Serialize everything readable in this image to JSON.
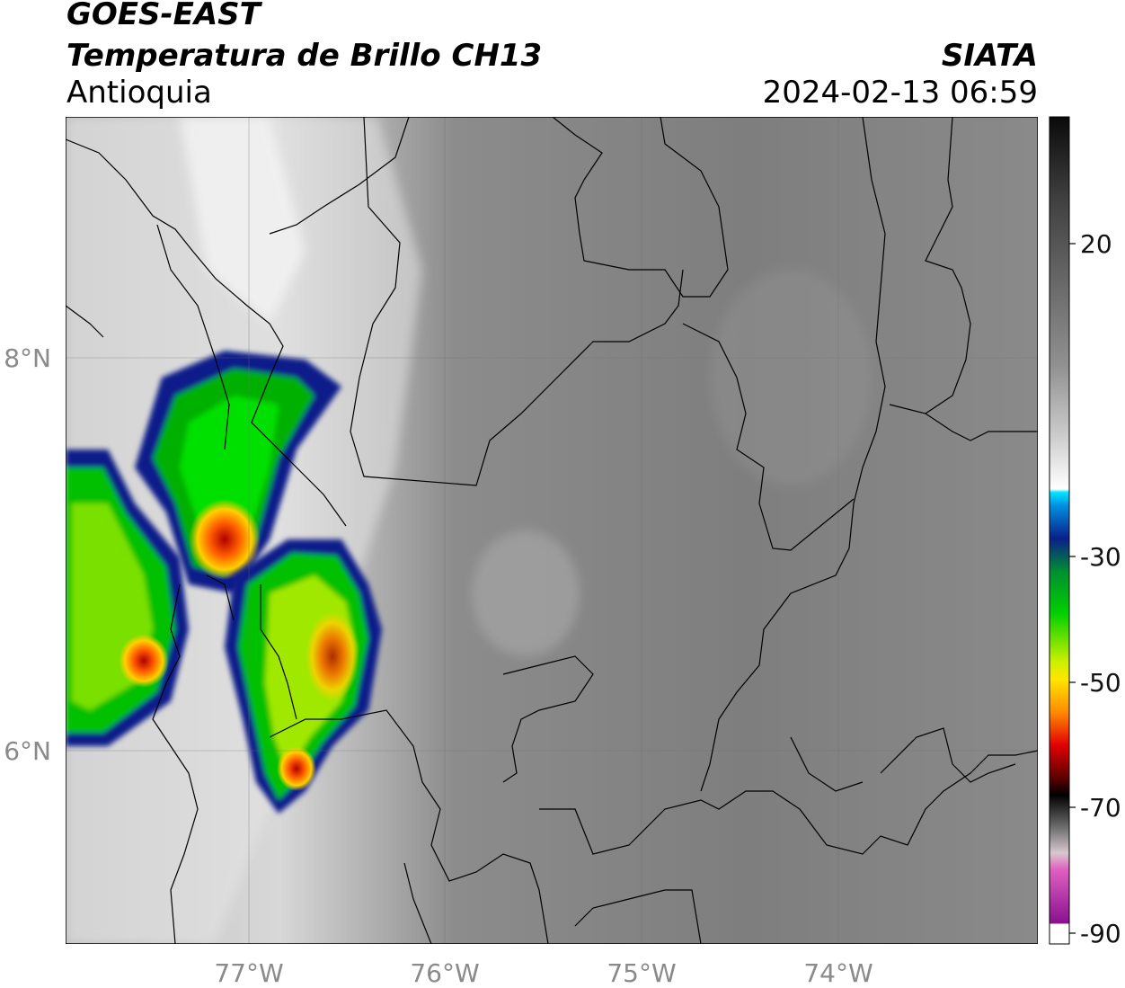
{
  "header": {
    "satellite": "GOES-EAST",
    "product": "Temperatura de Brillo CH13",
    "region": "Antioquia",
    "agency": "SIATA",
    "datetime": "2024-02-13 06:59"
  },
  "map": {
    "lon_ticks": [
      "77°W",
      "76°W",
      "75°W",
      "74°W"
    ],
    "lat_ticks": [
      "8°N",
      "6°N"
    ]
  },
  "colorbar": {
    "ticks": [
      "20",
      "-30",
      "-50",
      "-70",
      "-90"
    ],
    "colors": {
      "warm_gray_bottom": "#ffffff",
      "cold_cyan": "#00e5ff",
      "deep_blue": "#0a1f8a",
      "green": "#00c400",
      "yellow": "#ffe600",
      "orange": "#ff7a00",
      "red": "#e00000",
      "dark_red": "#5a0000",
      "black": "#000000",
      "pink": "#e060c0",
      "purple": "#8a1090"
    }
  }
}
